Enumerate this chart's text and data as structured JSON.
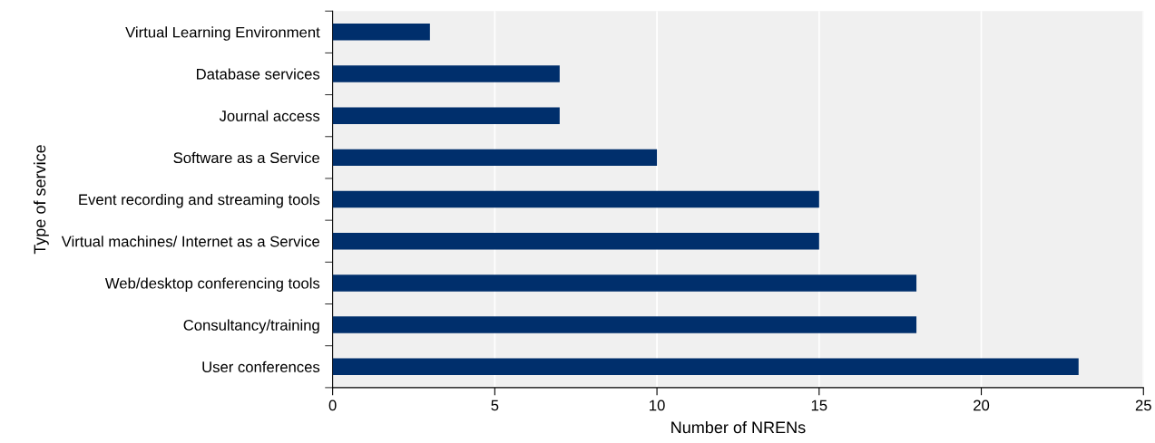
{
  "chart_data": {
    "type": "bar",
    "orientation": "horizontal",
    "xlabel": "Number of NRENs",
    "ylabel": "Type of service",
    "categories": [
      "Virtual Learning Environment",
      "Database services",
      "Journal access",
      "Software as a Service",
      "Event recording and streaming tools",
      "Virtual machines/ Internet as a Service",
      "Web/desktop conferencing tools",
      "Consultancy/training",
      "User conferences"
    ],
    "values": [
      3,
      7,
      7,
      10,
      15,
      15,
      18,
      18,
      23
    ],
    "color": "#002f6c",
    "xlim": [
      0,
      25
    ],
    "xticks": [
      0,
      5,
      10,
      15,
      20,
      25
    ],
    "grid": "x",
    "legend": false
  }
}
